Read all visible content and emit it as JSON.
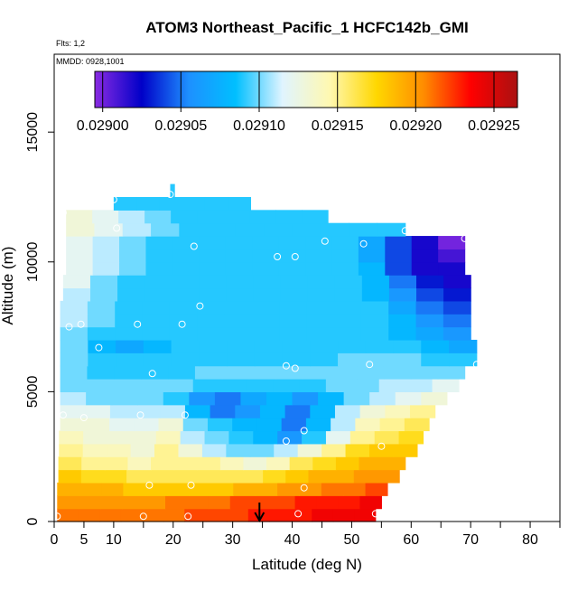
{
  "chart_data": {
    "type": "heatmap",
    "title": "ATOM3 Northeast_Pacific_1 HCFC142b_GMI",
    "info_lines": [
      "Flts: 1,2",
      "MMDD: 0928,1001"
    ],
    "xlabel": "Latitude (deg N)",
    "ylabel": "Altitude (m)",
    "xlim": [
      0,
      85
    ],
    "ylim": [
      0,
      18000
    ],
    "x_ticks": [
      0,
      5,
      10,
      20,
      30,
      40,
      50,
      60,
      70,
      80
    ],
    "x_minor_ticks": [
      15,
      25,
      35,
      45,
      55,
      65,
      75,
      85
    ],
    "y_ticks": [
      0,
      5000,
      10000,
      15000
    ],
    "colorbar": {
      "min": 0.028995,
      "max": 0.029265,
      "ticks": [
        "0.02900",
        "0.02905",
        "0.02910",
        "0.02915",
        "0.02920",
        "0.02925"
      ],
      "tick_values": [
        0.029,
        0.02905,
        0.0291,
        0.02915,
        0.0292,
        0.02925
      ],
      "colors": [
        "#8a2be2",
        "#0000c8",
        "#1e90ff",
        "#00bfff",
        "#e0f4ff",
        "#fff8b0",
        "#ffd700",
        "#ff8c00",
        "#ff0000",
        "#aa1111"
      ]
    },
    "arrow_latitude": 34.5,
    "rows": [
      {
        "alt": 250,
        "x0": 0.5,
        "x1": 54,
        "values": [
          0.02921,
          0.02921,
          0.02921,
          0.02921,
          0.02921,
          0.02921,
          0.02922,
          0.02922,
          0.02922,
          0.02923,
          0.02923,
          0.02923,
          0.02924,
          0.02924,
          0.02924
        ]
      },
      {
        "alt": 750,
        "x0": 0.5,
        "x1": 55,
        "values": [
          0.0292,
          0.0292,
          0.0292,
          0.0292,
          0.0292,
          0.02921,
          0.02921,
          0.02921,
          0.02922,
          0.02922,
          0.02922,
          0.02923,
          0.02923,
          0.02923,
          0.02924
        ]
      },
      {
        "alt": 1250,
        "x0": 0.5,
        "x1": 56,
        "values": [
          0.02919,
          0.02919,
          0.02919,
          0.02918,
          0.02918,
          0.02918,
          0.02918,
          0.02918,
          0.02919,
          0.02919,
          0.0292,
          0.0292,
          0.02921,
          0.02921,
          0.02922
        ]
      },
      {
        "alt": 1750,
        "x0": 0.7,
        "x1": 58,
        "values": [
          0.02918,
          0.02917,
          0.02917,
          0.02916,
          0.02916,
          0.02916,
          0.02916,
          0.02916,
          0.02916,
          0.02917,
          0.02918,
          0.02919,
          0.02919,
          0.0292,
          0.0292
        ]
      },
      {
        "alt": 2250,
        "x0": 0.7,
        "x1": 59,
        "values": [
          0.02916,
          0.02915,
          0.02915,
          0.02914,
          0.02915,
          0.02915,
          0.02915,
          0.02914,
          0.02913,
          0.02914,
          0.02916,
          0.02917,
          0.02918,
          0.02919,
          0.02919
        ]
      },
      {
        "alt": 2750,
        "x0": 0.8,
        "x1": 61,
        "values": [
          0.02915,
          0.02914,
          0.02914,
          0.02913,
          0.02915,
          0.02913,
          0.02911,
          0.0291,
          0.0291,
          0.02911,
          0.02913,
          0.02915,
          0.02917,
          0.02918,
          0.02918
        ]
      },
      {
        "alt": 3250,
        "x0": 0.8,
        "x1": 62,
        "values": [
          0.02914,
          0.02913,
          0.02913,
          0.02913,
          0.02914,
          0.02911,
          0.0291,
          0.02909,
          0.02908,
          0.02906,
          0.02909,
          0.02912,
          0.02915,
          0.02916,
          0.02917
        ]
      },
      {
        "alt": 3750,
        "x0": 1,
        "x1": 63,
        "values": [
          0.02913,
          0.02913,
          0.02912,
          0.02912,
          0.02913,
          0.0291,
          0.02909,
          0.02908,
          0.02908,
          0.02905,
          0.02908,
          0.02911,
          0.02914,
          0.02915,
          0.02916
        ]
      },
      {
        "alt": 4250,
        "x0": 1,
        "x1": 64,
        "values": [
          0.02912,
          0.02912,
          0.02911,
          0.02911,
          0.02911,
          0.02908,
          0.02905,
          0.02906,
          0.02908,
          0.02905,
          0.02908,
          0.02911,
          0.02913,
          0.02914,
          0.02915
        ]
      },
      {
        "alt": 4750,
        "x0": 1,
        "x1": 66,
        "values": [
          0.02911,
          0.0291,
          0.0291,
          0.0291,
          0.02909,
          0.02906,
          0.02905,
          0.02907,
          0.02908,
          0.02906,
          0.02908,
          0.0291,
          0.02911,
          0.02912,
          0.02913
        ]
      },
      {
        "alt": 5250,
        "x0": 1,
        "x1": 68,
        "values": [
          0.0291,
          0.0291,
          0.0291,
          0.0291,
          0.0291,
          0.02909,
          0.02909,
          0.02909,
          0.02909,
          0.02909,
          0.0291,
          0.0291,
          0.02911,
          0.02911,
          0.02912
        ]
      },
      {
        "alt": 5750,
        "x0": 1,
        "x1": 69,
        "values": [
          0.0291,
          0.02909,
          0.02909,
          0.02909,
          0.02909,
          0.0291,
          0.0291,
          0.0291,
          0.0291,
          0.0291,
          0.0291,
          0.0291,
          0.0291,
          0.0291,
          0.0291
        ]
      },
      {
        "alt": 6250,
        "x0": 1,
        "x1": 71,
        "values": [
          0.0291,
          0.02909,
          0.02909,
          0.02909,
          0.02909,
          0.02909,
          0.02909,
          0.02909,
          0.02909,
          0.02909,
          0.0291,
          0.0291,
          0.0291,
          0.02909,
          0.02909
        ]
      },
      {
        "alt": 6750,
        "x0": 1,
        "x1": 71,
        "values": [
          0.0291,
          0.02908,
          0.02907,
          0.02908,
          0.02909,
          0.02909,
          0.02909,
          0.02909,
          0.02909,
          0.02909,
          0.02909,
          0.02909,
          0.02909,
          0.02908,
          0.02907
        ]
      },
      {
        "alt": 7250,
        "x0": 1,
        "x1": 70,
        "values": [
          0.0291,
          0.02909,
          0.02909,
          0.02909,
          0.02909,
          0.02909,
          0.02909,
          0.02909,
          0.02909,
          0.02909,
          0.02909,
          0.02909,
          0.02908,
          0.02907,
          0.02906
        ]
      },
      {
        "alt": 7750,
        "x0": 1,
        "x1": 70,
        "values": [
          0.02911,
          0.0291,
          0.02909,
          0.02909,
          0.02909,
          0.02909,
          0.02909,
          0.02909,
          0.02909,
          0.02909,
          0.02909,
          0.02909,
          0.02908,
          0.02906,
          0.02905
        ]
      },
      {
        "alt": 8250,
        "x0": 1,
        "x1": 70,
        "values": [
          0.02911,
          0.0291,
          0.02909,
          0.02909,
          0.02909,
          0.02909,
          0.02909,
          0.02909,
          0.02909,
          0.02909,
          0.02909,
          0.02909,
          0.02907,
          0.02905,
          0.02904
        ]
      },
      {
        "alt": 8750,
        "x0": 1.5,
        "x1": 70,
        "values": [
          0.02911,
          0.0291,
          0.02909,
          0.02909,
          0.02909,
          0.02909,
          0.02909,
          0.02909,
          0.02909,
          0.02909,
          0.02909,
          0.02908,
          0.02906,
          0.02904,
          0.02903
        ]
      },
      {
        "alt": 9250,
        "x0": 1.5,
        "x1": 70,
        "values": [
          0.02912,
          0.0291,
          0.02909,
          0.02909,
          0.02909,
          0.02909,
          0.02909,
          0.02909,
          0.02909,
          0.02909,
          0.02909,
          0.02908,
          0.02905,
          0.02903,
          0.02902
        ]
      },
      {
        "alt": 9750,
        "x0": 2,
        "x1": 69,
        "values": [
          0.02912,
          0.02911,
          0.0291,
          0.02909,
          0.02909,
          0.02909,
          0.02909,
          0.02909,
          0.02909,
          0.02909,
          0.02909,
          0.02908,
          0.02904,
          0.02902,
          0.02902
        ]
      },
      {
        "alt": 10250,
        "x0": 2,
        "x1": 69,
        "values": [
          0.02912,
          0.02911,
          0.0291,
          0.02909,
          0.02909,
          0.02909,
          0.02909,
          0.02909,
          0.02909,
          0.02909,
          0.02909,
          0.02907,
          0.02904,
          0.02902,
          0.02901
        ]
      },
      {
        "alt": 10750,
        "x0": 2,
        "x1": 69,
        "values": [
          0.02912,
          0.02911,
          0.0291,
          0.02909,
          0.02909,
          0.02909,
          0.02909,
          0.02909,
          0.02909,
          0.02909,
          0.02909,
          0.02907,
          0.02904,
          0.02902,
          0.029
        ]
      },
      {
        "alt": 11250,
        "x0": 2,
        "x1": 59,
        "values": [
          0.02913,
          0.02912,
          0.02911,
          0.0291,
          0.02909,
          0.02909,
          0.02909,
          0.02909,
          0.02909,
          0.02909,
          0.02909,
          0.02909
        ]
      },
      {
        "alt": 11750,
        "x0": 2,
        "x1": 46,
        "values": [
          0.02913,
          0.02912,
          0.02911,
          0.0291,
          0.02909,
          0.02909,
          0.02909,
          0.02909,
          0.02909,
          0.02909
        ]
      },
      {
        "alt": 12250,
        "x0": 10,
        "x1": 33,
        "values": [
          0.02909,
          0.02909,
          0.02909,
          0.02909,
          0.02909,
          0.02909
        ]
      },
      {
        "alt": 12750,
        "x0": 19.5,
        "x1": 20.2,
        "values": [
          0.02909
        ]
      }
    ],
    "points": [
      {
        "lat": 0.5,
        "alt": 200
      },
      {
        "lat": 15,
        "alt": 200
      },
      {
        "lat": 22.5,
        "alt": 200
      },
      {
        "lat": 41,
        "alt": 300
      },
      {
        "lat": 54,
        "alt": 300
      },
      {
        "lat": 16,
        "alt": 1400
      },
      {
        "lat": 23,
        "alt": 1400
      },
      {
        "lat": 42,
        "alt": 1300
      },
      {
        "lat": 55,
        "alt": 2900
      },
      {
        "lat": 39,
        "alt": 3100
      },
      {
        "lat": 42,
        "alt": 3500
      },
      {
        "lat": 1.5,
        "alt": 4100
      },
      {
        "lat": 5,
        "alt": 4000
      },
      {
        "lat": 14.5,
        "alt": 4100
      },
      {
        "lat": 22,
        "alt": 4100
      },
      {
        "lat": 16.5,
        "alt": 5700
      },
      {
        "lat": 39,
        "alt": 6000
      },
      {
        "lat": 40.5,
        "alt": 5900
      },
      {
        "lat": 53,
        "alt": 6050
      },
      {
        "lat": 71,
        "alt": 6050
      },
      {
        "lat": 7.5,
        "alt": 6700
      },
      {
        "lat": 2.5,
        "alt": 7500
      },
      {
        "lat": 4.5,
        "alt": 7600
      },
      {
        "lat": 14,
        "alt": 7600
      },
      {
        "lat": 21.5,
        "alt": 7600
      },
      {
        "lat": 24.5,
        "alt": 8300
      },
      {
        "lat": 37.5,
        "alt": 10200
      },
      {
        "lat": 40.5,
        "alt": 10200
      },
      {
        "lat": 23.5,
        "alt": 10600
      },
      {
        "lat": 45.5,
        "alt": 10800
      },
      {
        "lat": 52,
        "alt": 10700
      },
      {
        "lat": 69,
        "alt": 10900
      },
      {
        "lat": 59,
        "alt": 11200
      },
      {
        "lat": 10.5,
        "alt": 11300
      },
      {
        "lat": 1.5,
        "alt": 11900
      },
      {
        "lat": 10,
        "alt": 12400
      },
      {
        "lat": 19.5,
        "alt": 12600
      }
    ]
  }
}
